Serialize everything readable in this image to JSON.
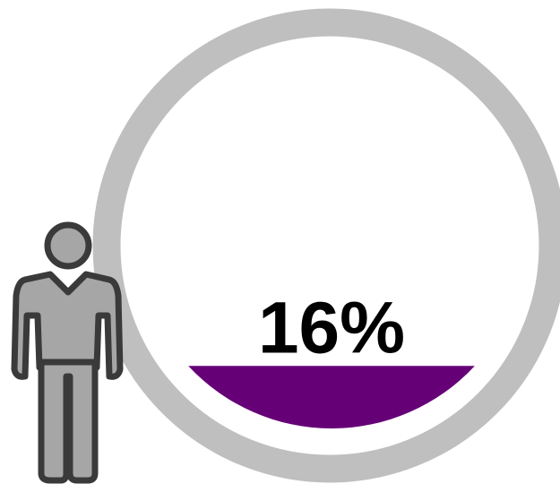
{
  "chart_data": {
    "type": "fill",
    "values": [
      16
    ],
    "value_labels": [
      "16%"
    ],
    "ylim": [
      0,
      100
    ],
    "color": "#660077"
  }
}
